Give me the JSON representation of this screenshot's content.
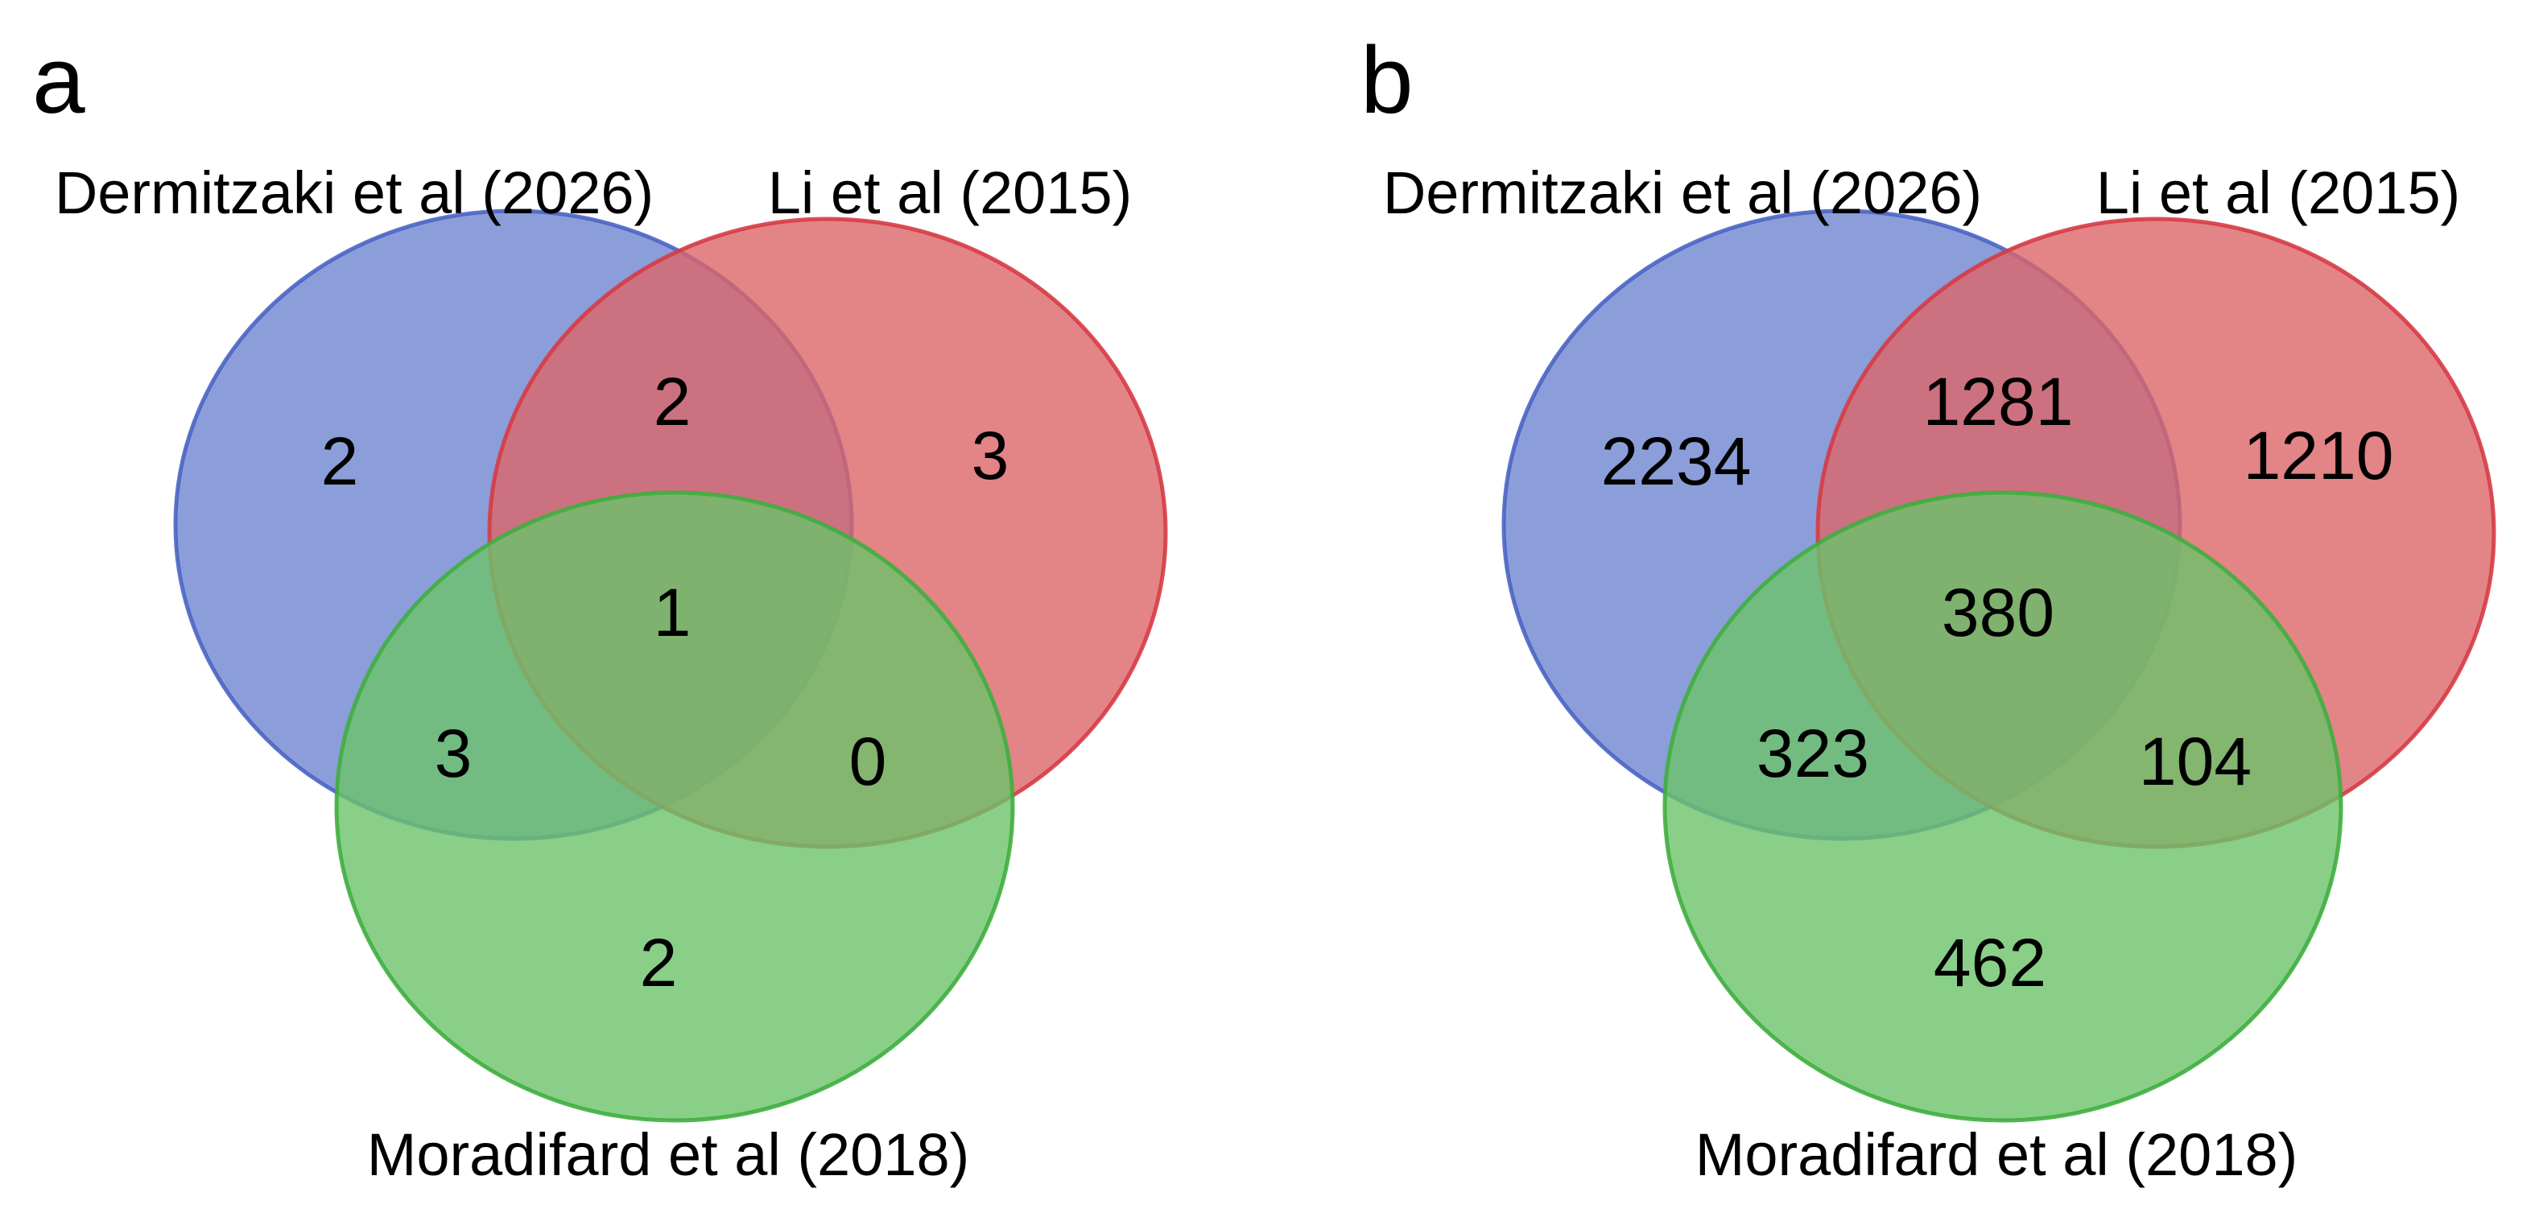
{
  "colors": {
    "set_a_fill": "#6f86d0",
    "set_a_stroke": "#4a64c4",
    "set_b_fill": "#dc6568",
    "set_b_stroke": "#d63b45",
    "set_c_fill": "#6cc36a",
    "set_c_stroke": "#3fae3f"
  },
  "panels": [
    {
      "letter": "a",
      "labels": {
        "set_a": "Dermitzaki et al (2026)",
        "set_b": "Li et al (2015)",
        "set_c": "Moradifard et al (2018)"
      },
      "counts": {
        "a_only": "2",
        "b_only": "3",
        "c_only": "2",
        "ab": "2",
        "ac": "3",
        "bc": "0",
        "abc": "1"
      }
    },
    {
      "letter": "b",
      "labels": {
        "set_a": "Dermitzaki et al (2026)",
        "set_b": "Li et al (2015)",
        "set_c": "Moradifard et al (2018)"
      },
      "counts": {
        "a_only": "2234",
        "b_only": "1210",
        "c_only": "462",
        "ab": "1281",
        "ac": "323",
        "bc": "104",
        "abc": "380"
      }
    }
  ]
}
